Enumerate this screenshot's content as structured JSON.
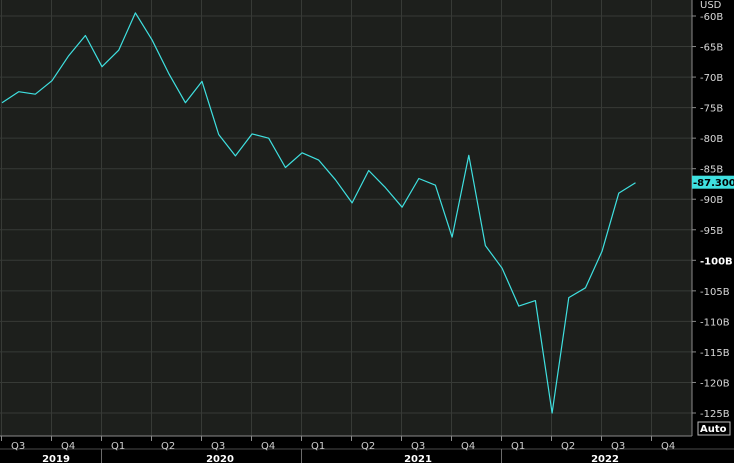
{
  "chart_data": {
    "type": "line",
    "unit_label": "USD",
    "y_tick_labels": [
      "-60B",
      "-65B",
      "-70B",
      "-75B",
      "-80B",
      "-85B",
      "-90B",
      "-95B",
      "-100B",
      "-105B",
      "-110B",
      "-115B",
      "-120B",
      "-125B"
    ],
    "bold_tick_label": "-100B",
    "ylim": [
      -126.5,
      -58.5
    ],
    "quarter_labels": [
      "Q3",
      "Q4",
      "Q1",
      "Q2",
      "Q3",
      "Q4",
      "Q1",
      "Q2",
      "Q3",
      "Q4",
      "Q1",
      "Q2",
      "Q3",
      "Q4"
    ],
    "year_labels": [
      "2019",
      "2020",
      "2021",
      "2022"
    ],
    "last_value_label": "-87.300",
    "auto_label": "Auto",
    "grid": true,
    "series": [
      {
        "color": "#3fe0e0",
        "values": [
          -74.2,
          -72.4,
          -72.8,
          -70.6,
          -66.5,
          -63.2,
          -68.3,
          -65.6,
          -59.5,
          -63.9,
          -69.4,
          -74.2,
          -70.7,
          -79.4,
          -82.9,
          -79.3,
          -80.0,
          -84.8,
          -82.4,
          -83.6,
          -86.8,
          -90.6,
          -85.3,
          -88.1,
          -91.3,
          -86.6,
          -87.7,
          -96.2,
          -82.8,
          -97.6,
          -101.3,
          -107.5,
          -106.6,
          -125.0,
          -106.1,
          -104.5,
          -98.5,
          -89.0,
          -87.3
        ]
      }
    ]
  }
}
